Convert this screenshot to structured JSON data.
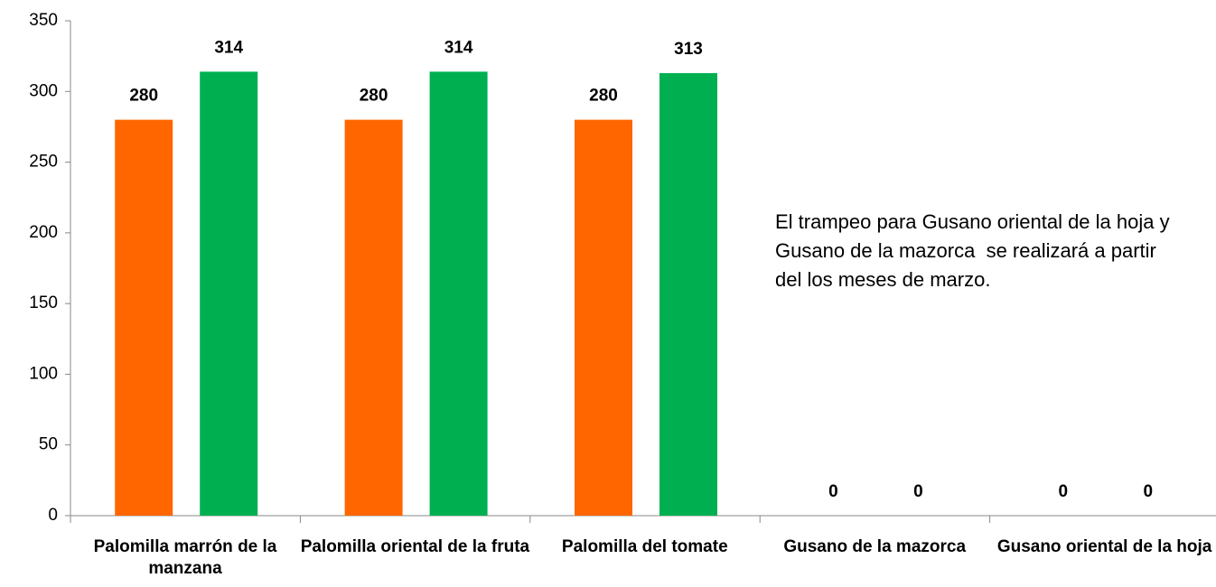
{
  "chart_data": {
    "type": "bar",
    "categories": [
      "Palomilla marrón de la manzana",
      "Palomilla oriental de la fruta",
      "Palomilla del tomate",
      "Gusano de la mazorca",
      "Gusano oriental de la hoja"
    ],
    "series": [
      {
        "color": "#ff6600",
        "values": [
          280,
          280,
          280,
          0,
          0
        ]
      },
      {
        "color": "#00b050",
        "values": [
          314,
          314,
          313,
          0,
          0
        ]
      }
    ],
    "ylim": [
      0,
      350
    ],
    "yticks": [
      0,
      50,
      100,
      150,
      200,
      250,
      300,
      350
    ],
    "annotation": "El trampeo para Gusano oriental de la hoja y Gusano de la mazorca  se realizará a partir del los meses de marzo."
  }
}
